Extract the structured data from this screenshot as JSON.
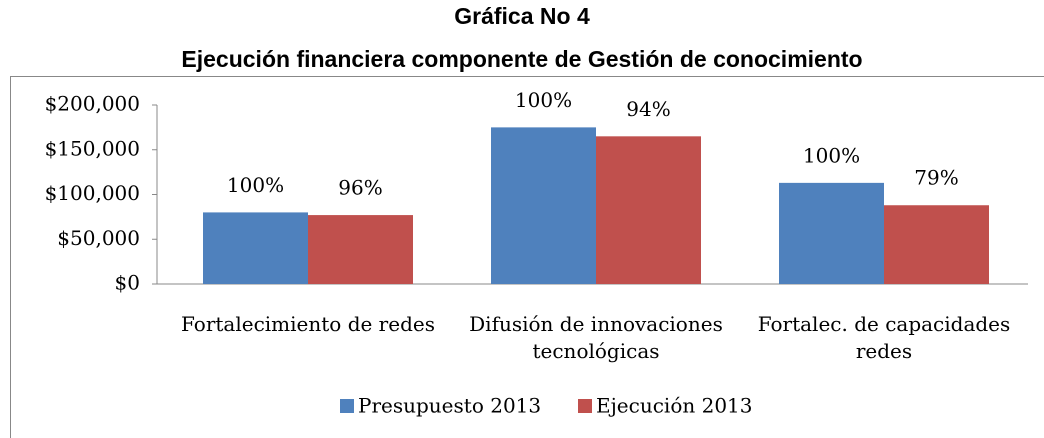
{
  "chart_data": {
    "type": "bar",
    "title": "Gráfica No 4",
    "subtitle": "Ejecución financiera componente de Gestión de conocimiento",
    "categories": [
      "Fortalecimiento de redes",
      "Difusión de innovaciones tecnológicas",
      "Fortalec. de capacidades redes"
    ],
    "series": [
      {
        "name": "Presupuesto 2013",
        "color": "#4f81bd",
        "values": [
          80000,
          175000,
          113000
        ],
        "data_labels": [
          "100%",
          "100%",
          "100%"
        ]
      },
      {
        "name": "Ejecución 2013",
        "color": "#c0504d",
        "values": [
          77000,
          165000,
          88000
        ],
        "data_labels": [
          "96%",
          "94%",
          "79%"
        ]
      }
    ],
    "ylim": [
      0,
      200000
    ],
    "yticks": [
      {
        "value": 0,
        "label": "$0"
      },
      {
        "value": 50000,
        "label": "$50,000"
      },
      {
        "value": 100000,
        "label": "$100,000"
      },
      {
        "value": 150000,
        "label": "$150,000"
      },
      {
        "value": 200000,
        "label": "$200,000"
      }
    ],
    "grid": false,
    "legend": "bottom"
  }
}
